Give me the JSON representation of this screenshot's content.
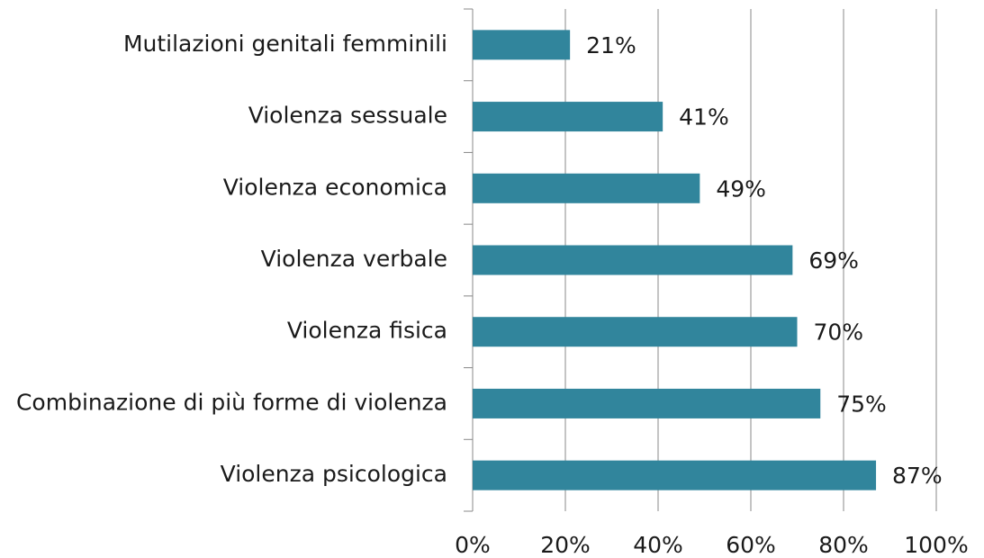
{
  "chart_data": {
    "type": "bar",
    "orientation": "horizontal",
    "categories": [
      "Mutilazioni genitali femminili",
      "Violenza sessuale",
      "Violenza economica",
      "Violenza verbale",
      "Violenza fisica",
      "Combinazione di più forme di violenza",
      "Violenza psicologica"
    ],
    "values": [
      21,
      41,
      49,
      69,
      70,
      75,
      87
    ],
    "value_labels": [
      "21%",
      "41%",
      "49%",
      "69%",
      "70%",
      "75%",
      "87%"
    ],
    "color": "#31859c",
    "xlim": [
      0,
      100
    ],
    "xticks": [
      {
        "value": 0,
        "label": "0%"
      },
      {
        "value": 20,
        "label": "20%"
      },
      {
        "value": 40,
        "label": "40%"
      },
      {
        "value": 60,
        "label": "60%"
      },
      {
        "value": 80,
        "label": "80%"
      },
      {
        "value": 100,
        "label": "100%"
      }
    ],
    "grid": true
  }
}
